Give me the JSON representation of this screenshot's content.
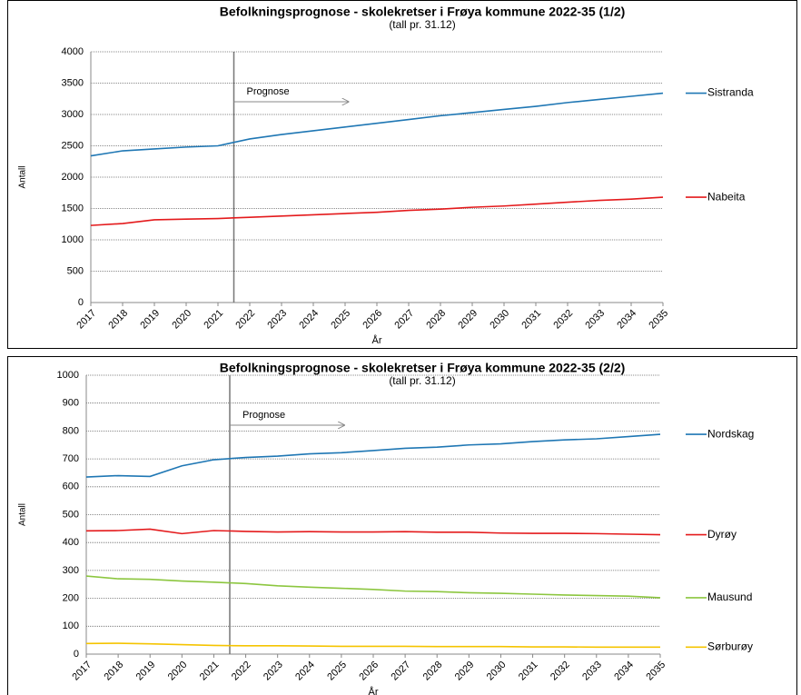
{
  "chart_data": [
    {
      "type": "line",
      "title": "Befolkningsprognose - skolekretser i Frøya kommune 2022-35 (1/2)",
      "subtitle": "(tall pr. 31.12)",
      "y_label": "Antall",
      "x_label": "År",
      "annotation": "Prognose",
      "categories": [
        "2017",
        "2018",
        "2019",
        "2020",
        "2021",
        "2022",
        "2023",
        "2024",
        "2025",
        "2026",
        "2027",
        "2028",
        "2029",
        "2030",
        "2031",
        "2032",
        "2033",
        "2034",
        "2035"
      ],
      "series": [
        {
          "name": "Sistranda",
          "color": "#1f77b4",
          "values": [
            2340,
            2420,
            2450,
            2480,
            2500,
            2610,
            2680,
            2740,
            2800,
            2860,
            2920,
            2980,
            3030,
            3080,
            3130,
            3190,
            3240,
            3290,
            3340
          ]
        },
        {
          "name": "Nabeita",
          "color": "#e41a1c",
          "values": [
            1230,
            1260,
            1320,
            1330,
            1340,
            1360,
            1380,
            1400,
            1420,
            1440,
            1470,
            1490,
            1520,
            1540,
            1570,
            1600,
            1630,
            1650,
            1680
          ]
        }
      ],
      "ylim": [
        0,
        4000
      ],
      "yticks": [
        0,
        500,
        1000,
        1500,
        2000,
        2500,
        3000,
        3500,
        4000
      ],
      "grid": true
    },
    {
      "type": "line",
      "title": "Befolkningsprognose - skolekretser i Frøya kommune 2022-35 (2/2)",
      "subtitle": "(tall pr. 31.12)",
      "y_label": "Antall",
      "x_label": "År",
      "annotation": "Prognose",
      "categories": [
        "2017",
        "2018",
        "2019",
        "2020",
        "2021",
        "2022",
        "2023",
        "2024",
        "2025",
        "2026",
        "2027",
        "2028",
        "2029",
        "2030",
        "2031",
        "2032",
        "2033",
        "2034",
        "2035"
      ],
      "series": [
        {
          "name": "Nordskag",
          "color": "#1f77b4",
          "values": [
            635,
            640,
            637,
            675,
            697,
            705,
            710,
            718,
            722,
            730,
            738,
            742,
            750,
            754,
            762,
            768,
            772,
            780,
            788
          ]
        },
        {
          "name": "Dyrøy",
          "color": "#e41a1c",
          "values": [
            442,
            443,
            448,
            432,
            443,
            440,
            438,
            439,
            438,
            438,
            439,
            437,
            437,
            434,
            433,
            433,
            432,
            430,
            428
          ]
        },
        {
          "name": "Mausund",
          "color": "#8cc63f",
          "values": [
            280,
            270,
            268,
            262,
            258,
            253,
            245,
            240,
            236,
            232,
            226,
            224,
            220,
            218,
            215,
            212,
            210,
            208,
            202
          ]
        },
        {
          "name": "Sørburøy",
          "color": "#f5c400",
          "values": [
            38,
            39,
            37,
            34,
            31,
            30,
            30,
            29,
            28,
            28,
            28,
            27,
            27,
            27,
            26,
            26,
            25,
            25,
            25
          ]
        }
      ],
      "ylim": [
        0,
        1000
      ],
      "yticks": [
        0,
        100,
        200,
        300,
        400,
        500,
        600,
        700,
        800,
        900,
        1000
      ],
      "grid": true
    }
  ]
}
